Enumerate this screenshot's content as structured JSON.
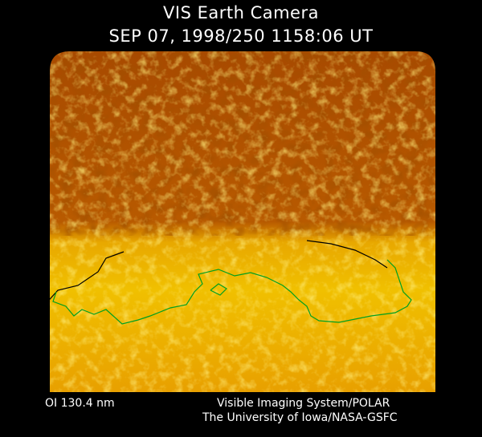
{
  "header": {
    "title": "VIS Earth Camera",
    "timestamp": "SEP 07, 1998/250 1158:06 UT"
  },
  "image": {
    "colormap": [
      "#1a0400",
      "#7a2800",
      "#c86a00",
      "#f0b000",
      "#ffff40"
    ],
    "coastline_color": "#00a020"
  },
  "footer": {
    "wavelength": "OI  130.4 nm",
    "instrument": "Visible Imaging System/POLAR",
    "institution": "The University of Iowa/NASA-GSFC"
  }
}
